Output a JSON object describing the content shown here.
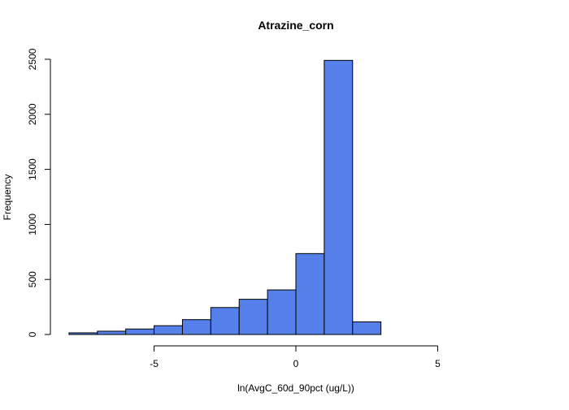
{
  "chart_data": {
    "type": "bar",
    "title": "Atrazine_corn",
    "xlabel": "ln(AvgC_60d_90pct (ug/L))",
    "ylabel": "Frequency",
    "bin_width": 1,
    "bins": [
      {
        "x0": -8,
        "x1": -7,
        "value": 15
      },
      {
        "x0": -7,
        "x1": -6,
        "value": 30
      },
      {
        "x0": -6,
        "x1": -5,
        "value": 50
      },
      {
        "x0": -5,
        "x1": -4,
        "value": 80
      },
      {
        "x0": -4,
        "x1": -3,
        "value": 135
      },
      {
        "x0": -3,
        "x1": -2,
        "value": 245
      },
      {
        "x0": -2,
        "x1": -1,
        "value": 320
      },
      {
        "x0": -1,
        "x1": 0,
        "value": 405
      },
      {
        "x0": 0,
        "x1": 1,
        "value": 735
      },
      {
        "x0": 1,
        "x1": 2,
        "value": 2490
      },
      {
        "x0": 2,
        "x1": 3,
        "value": 115
      },
      {
        "x0": 3,
        "x1": 4,
        "value": 0
      },
      {
        "x0": 4,
        "x1": 5,
        "value": 0
      },
      {
        "x0": 5,
        "x1": 6,
        "value": 0
      },
      {
        "x0": 6,
        "x1": 7,
        "value": 0
      },
      {
        "x0": 7,
        "x1": 8,
        "value": 0
      },
      {
        "x0": 8,
        "x1": 9,
        "value": 0
      }
    ],
    "xlim": [
      -9,
      9
    ],
    "ylim": [
      0,
      2500
    ],
    "x_ticks": [
      -5,
      0,
      5
    ],
    "x_tick_labels": [
      "-5",
      "0",
      "5"
    ],
    "y_ticks": [
      0,
      500,
      1000,
      1500,
      2000,
      2500
    ],
    "y_tick_labels": [
      "0",
      "500",
      "1000",
      "1500",
      "2000",
      "2500"
    ],
    "bar_color": "#5580ea",
    "edge_color": "#000000",
    "grid": false,
    "legend": "none"
  }
}
